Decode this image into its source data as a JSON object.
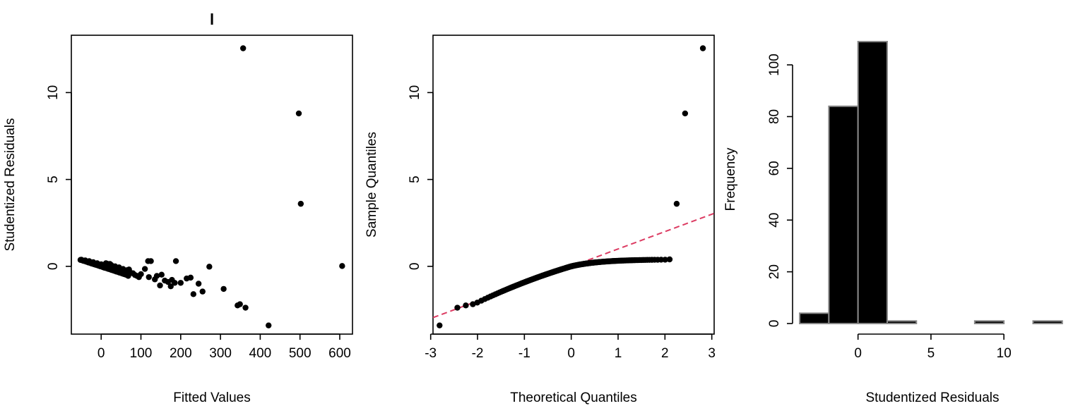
{
  "chart_data": [
    {
      "type": "scatter",
      "title": "l",
      "xlabel": "Fitted Values",
      "ylabel": "Studentized Residuals",
      "xlim": [
        -75,
        632
      ],
      "ylim": [
        -3.9,
        13.3
      ],
      "xticks": [
        0,
        100,
        200,
        300,
        400,
        500,
        600
      ],
      "yticks": [
        0,
        5,
        10
      ],
      "box": true,
      "points": [
        [
          -52,
          0.37
        ],
        [
          -48,
          0.35
        ],
        [
          -45,
          0.32
        ],
        [
          -42,
          0.3
        ],
        [
          -38,
          0.27
        ],
        [
          -35,
          0.25
        ],
        [
          -32,
          0.22
        ],
        [
          -28,
          0.2
        ],
        [
          -25,
          0.17
        ],
        [
          -22,
          0.15
        ],
        [
          -18,
          0.12
        ],
        [
          -15,
          0.1
        ],
        [
          -12,
          0.08
        ],
        [
          -8,
          0.05
        ],
        [
          -5,
          0.03
        ],
        [
          -2,
          0.0
        ],
        [
          2,
          -0.02
        ],
        [
          5,
          -0.05
        ],
        [
          8,
          -0.08
        ],
        [
          12,
          -0.1
        ],
        [
          15,
          -0.12
        ],
        [
          18,
          -0.15
        ],
        [
          22,
          -0.17
        ],
        [
          25,
          -0.2
        ],
        [
          28,
          -0.22
        ],
        [
          32,
          -0.25
        ],
        [
          35,
          -0.27
        ],
        [
          38,
          -0.3
        ],
        [
          42,
          -0.32
        ],
        [
          45,
          -0.35
        ],
        [
          48,
          -0.37
        ],
        [
          52,
          -0.4
        ],
        [
          55,
          -0.43
        ],
        [
          58,
          -0.45
        ],
        [
          62,
          -0.48
        ],
        [
          65,
          -0.5
        ],
        [
          -10,
          0.18
        ],
        [
          0,
          0.12
        ],
        [
          10,
          0.1
        ],
        [
          20,
          0.02
        ],
        [
          30,
          -0.05
        ],
        [
          40,
          -0.12
        ],
        [
          50,
          -0.18
        ],
        [
          60,
          -0.25
        ],
        [
          70,
          -0.3
        ],
        [
          80,
          -0.4
        ],
        [
          90,
          -0.55
        ],
        [
          5,
          0.06
        ],
        [
          15,
          0.15
        ],
        [
          25,
          0.08
        ],
        [
          35,
          0.0
        ],
        [
          45,
          -0.06
        ],
        [
          55,
          -0.15
        ],
        [
          65,
          -0.22
        ],
        [
          75,
          -0.38
        ],
        [
          85,
          -0.5
        ],
        [
          95,
          -0.62
        ],
        [
          100,
          -0.45
        ],
        [
          110,
          -0.15
        ],
        [
          118,
          0.3
        ],
        [
          125,
          0.3
        ],
        [
          120,
          -0.62
        ],
        [
          135,
          -0.75
        ],
        [
          140,
          -0.55
        ],
        [
          148,
          -1.1
        ],
        [
          152,
          -0.48
        ],
        [
          160,
          -0.82
        ],
        [
          168,
          -0.9
        ],
        [
          175,
          -1.15
        ],
        [
          178,
          -0.78
        ],
        [
          185,
          -0.95
        ],
        [
          188,
          0.3
        ],
        [
          200,
          -0.95
        ],
        [
          215,
          -0.7
        ],
        [
          225,
          -0.65
        ],
        [
          232,
          -1.6
        ],
        [
          245,
          -1.0
        ],
        [
          255,
          -1.45
        ],
        [
          272,
          -0.02
        ],
        [
          308,
          -1.3
        ],
        [
          343,
          -2.25
        ],
        [
          349,
          -2.18
        ],
        [
          363,
          -2.38
        ],
        [
          421,
          -3.4
        ],
        [
          357,
          12.55
        ],
        [
          497,
          8.8
        ],
        [
          502,
          3.6
        ],
        [
          606,
          0.02
        ],
        [
          12,
          0.18
        ],
        [
          22,
          0.14
        ],
        [
          -20,
          0.24
        ],
        [
          -30,
          0.3
        ],
        [
          -40,
          0.34
        ],
        [
          -50,
          0.38
        ],
        [
          70,
          -0.18
        ],
        [
          60,
          -0.4
        ],
        [
          68,
          -0.55
        ]
      ]
    },
    {
      "type": "scatter",
      "title": "",
      "xlabel": "Theoretical Quantiles",
      "ylabel": "Sample Quantiles",
      "xlim": [
        -2.95,
        3.05
      ],
      "ylim": [
        -3.9,
        13.3
      ],
      "xticks": [
        -3,
        -2,
        -1,
        0,
        1,
        2,
        3
      ],
      "yticks": [
        0,
        5,
        10
      ],
      "box": true,
      "reference_line": {
        "intercept": 0.0,
        "slope": 1.0,
        "color": "#dc3b62",
        "style": "dashed"
      },
      "qq": {
        "n": 200,
        "top_points": [
          [
            2.81,
            12.55
          ],
          [
            2.43,
            8.8
          ],
          [
            2.25,
            3.6
          ],
          [
            2.1,
            0.4
          ]
        ],
        "bottom_points": [
          [
            -2.81,
            -3.4
          ],
          [
            -2.43,
            -2.38
          ],
          [
            -2.25,
            -2.25
          ],
          [
            -2.1,
            -2.18
          ]
        ]
      }
    },
    {
      "type": "bar",
      "subtype": "histogram",
      "title": "",
      "xlabel": "Studentized Residuals",
      "ylabel": "Frequency",
      "xlim": [
        -4.1,
        14.3
      ],
      "ylim": [
        0,
        112
      ],
      "xticks": [
        0,
        5,
        10
      ],
      "yticks": [
        0,
        20,
        40,
        60,
        80,
        100
      ],
      "bins": [
        [
          -4,
          -2
        ],
        [
          -2,
          0
        ],
        [
          0,
          2
        ],
        [
          2,
          4
        ],
        [
          4,
          6
        ],
        [
          6,
          8
        ],
        [
          8,
          10
        ],
        [
          10,
          12
        ],
        [
          12,
          14
        ]
      ],
      "values": [
        4,
        84,
        109,
        1,
        0,
        0,
        1,
        0,
        1
      ],
      "bar_fill": "#000000",
      "bar_stroke": "#888888"
    }
  ]
}
